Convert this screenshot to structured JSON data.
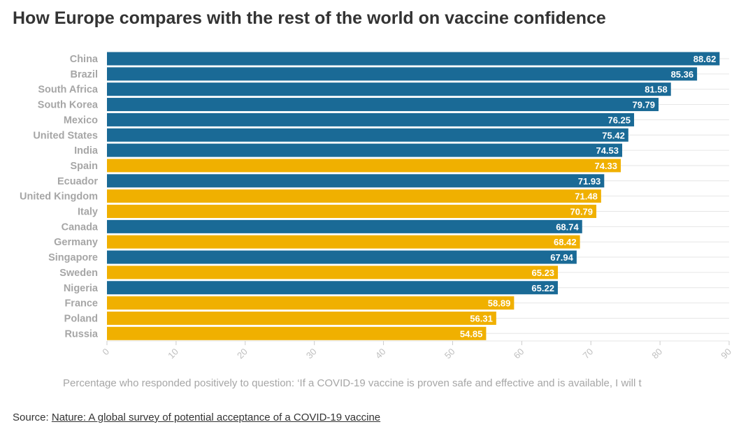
{
  "title": "How Europe compares with the rest of the world on vaccine confidence",
  "source": {
    "prefix": "Source: ",
    "link_text": "Nature: A global survey of potential acceptance of a COVID-19 vaccine"
  },
  "colors": {
    "europe": "#f0b000",
    "rest_of_world": "#1a6a96",
    "grid": "#e6e6e6",
    "category_label": "#a6a6a6",
    "tick_label": "#bfbfbf",
    "value_label": "#ffffff"
  },
  "chart_data": {
    "type": "bar",
    "orientation": "horizontal",
    "title": "How Europe compares with the rest of the world on vaccine confidence",
    "xlabel": "Percentage who responded positively to question: ‘If a COVID-19 vaccine is proven safe and effective and is available, I will t",
    "ylabel": "",
    "xlim": [
      0,
      90
    ],
    "xticks": [
      "0",
      "10",
      "20",
      "30",
      "40",
      "50",
      "60",
      "70",
      "80",
      "90"
    ],
    "grid": true,
    "legend": "none",
    "categories": [
      "China",
      "Brazil",
      "South Africa",
      "South Korea",
      "Mexico",
      "United States",
      "India",
      "Spain",
      "Ecuador",
      "United Kingdom",
      "Italy",
      "Canada",
      "Germany",
      "Singapore",
      "Sweden",
      "Nigeria",
      "France",
      "Poland",
      "Russia"
    ],
    "values": [
      88.62,
      85.36,
      81.58,
      79.79,
      76.25,
      75.42,
      74.53,
      74.33,
      71.93,
      71.48,
      70.79,
      68.74,
      68.42,
      67.94,
      65.23,
      65.22,
      58.89,
      56.31,
      54.85
    ],
    "value_labels": [
      "88.62",
      "85.36",
      "81.58",
      "79.79",
      "76.25",
      "75.42",
      "74.53",
      "74.33",
      "71.93",
      "71.48",
      "70.79",
      "68.74",
      "68.42",
      "67.94",
      "65.23",
      "65.22",
      "58.89",
      "56.31",
      "54.85"
    ],
    "europe": [
      false,
      false,
      false,
      false,
      false,
      false,
      false,
      true,
      false,
      true,
      true,
      false,
      true,
      false,
      true,
      false,
      true,
      true,
      true
    ]
  }
}
